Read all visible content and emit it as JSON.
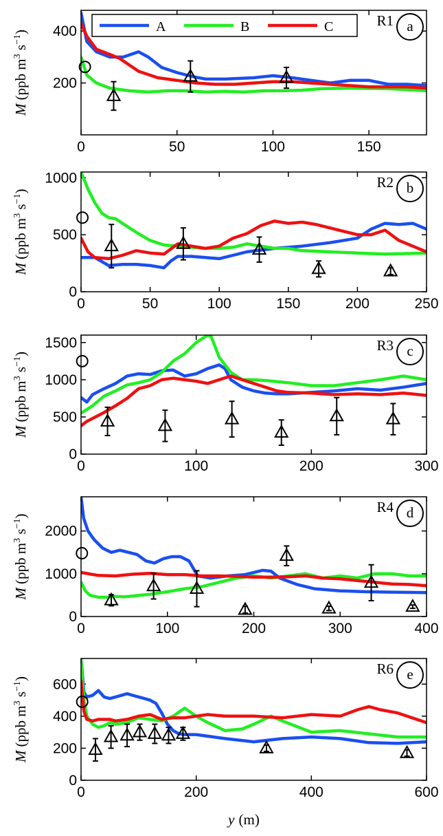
{
  "colors": {
    "A": "#1a4ff0",
    "B": "#22ee22",
    "C": "#ee1111",
    "markers": "#000000"
  },
  "legend": {
    "entries": [
      "A",
      "B",
      "C"
    ]
  },
  "figure": {
    "xlabel": "y (m)",
    "xlabel_var": "y",
    "xlabel_unit": "(m)"
  },
  "chart_data": [
    {
      "type": "line",
      "region": "R1",
      "panel": "a",
      "xlim": [
        0,
        180
      ],
      "ylim": [
        0,
        480
      ],
      "xticks": [
        0,
        50,
        100,
        150
      ],
      "yticks": [
        200,
        400
      ],
      "ylabel": "M (ppb m3 s−1)",
      "series": [
        {
          "name": "A",
          "x": [
            0,
            3,
            8,
            15,
            22,
            30,
            35,
            42,
            50,
            58,
            65,
            75,
            90,
            100,
            110,
            120,
            130,
            140,
            150,
            160,
            170,
            180
          ],
          "y": [
            470,
            360,
            320,
            300,
            300,
            320,
            300,
            260,
            240,
            225,
            215,
            215,
            220,
            228,
            220,
            210,
            200,
            210,
            210,
            195,
            195,
            190
          ]
        },
        {
          "name": "B",
          "x": [
            0,
            3,
            8,
            15,
            25,
            35,
            45,
            55,
            65,
            75,
            85,
            95,
            105,
            115,
            125,
            140,
            160,
            180
          ],
          "y": [
            300,
            230,
            200,
            180,
            170,
            165,
            170,
            170,
            165,
            168,
            165,
            170,
            170,
            172,
            178,
            180,
            178,
            170
          ]
        },
        {
          "name": "C",
          "x": [
            0,
            3,
            8,
            15,
            20,
            30,
            40,
            50,
            60,
            70,
            80,
            90,
            100,
            110,
            120,
            130,
            140,
            150,
            160,
            170,
            180
          ],
          "y": [
            430,
            380,
            330,
            310,
            295,
            245,
            220,
            210,
            200,
            195,
            195,
            200,
            205,
            205,
            200,
            195,
            190,
            185,
            185,
            185,
            180
          ]
        }
      ],
      "circle": {
        "x": 2,
        "y": 262
      },
      "triangles": [
        {
          "x": 17,
          "y": 150,
          "err": 55
        },
        {
          "x": 57,
          "y": 225,
          "err": 60
        },
        {
          "x": 107,
          "y": 220,
          "err": 40
        }
      ]
    },
    {
      "type": "line",
      "region": "R2",
      "panel": "b",
      "xlim": [
        0,
        250
      ],
      "ylim": [
        0,
        1050
      ],
      "xticks": [
        0,
        50,
        100,
        150,
        200,
        250
      ],
      "yticks": [
        0,
        500,
        1000
      ],
      "ylabel": "M (ppb m3 s−1)",
      "series": [
        {
          "name": "A",
          "x": [
            0,
            10,
            20,
            30,
            40,
            50,
            60,
            65,
            70,
            80,
            90,
            100,
            110,
            120,
            140,
            160,
            180,
            200,
            210,
            220,
            230,
            240,
            250
          ],
          "y": [
            300,
            300,
            230,
            240,
            240,
            230,
            210,
            270,
            310,
            310,
            300,
            290,
            320,
            350,
            380,
            400,
            430,
            470,
            550,
            600,
            590,
            600,
            550
          ]
        },
        {
          "name": "B",
          "x": [
            0,
            5,
            10,
            15,
            20,
            25,
            30,
            40,
            50,
            60,
            70,
            80,
            90,
            100,
            110,
            120,
            130,
            140,
            150,
            160,
            180,
            200,
            220,
            250
          ],
          "y": [
            1050,
            900,
            780,
            690,
            650,
            640,
            600,
            520,
            450,
            410,
            400,
            390,
            380,
            380,
            390,
            420,
            400,
            380,
            380,
            360,
            350,
            340,
            330,
            340
          ]
        },
        {
          "name": "C",
          "x": [
            0,
            5,
            10,
            20,
            30,
            40,
            50,
            60,
            70,
            80,
            90,
            100,
            110,
            120,
            130,
            140,
            150,
            160,
            170,
            180,
            190,
            200,
            210,
            220,
            230,
            240,
            250
          ],
          "y": [
            470,
            350,
            300,
            290,
            320,
            360,
            340,
            330,
            420,
            400,
            380,
            400,
            470,
            510,
            580,
            620,
            600,
            610,
            590,
            560,
            530,
            500,
            500,
            540,
            450,
            400,
            350
          ]
        }
      ],
      "circle": {
        "x": 1,
        "y": 650
      },
      "triangles": [
        {
          "x": 22,
          "y": 400,
          "err": 190
        },
        {
          "x": 74,
          "y": 420,
          "err": 140
        },
        {
          "x": 129,
          "y": 370,
          "err": 110
        },
        {
          "x": 172,
          "y": 200,
          "err": 70
        },
        {
          "x": 224,
          "y": 180,
          "err": 30
        }
      ]
    },
    {
      "type": "line",
      "region": "R3",
      "panel": "c",
      "xlim": [
        0,
        300
      ],
      "ylim": [
        0,
        1600
      ],
      "xticks": [
        0,
        100,
        200,
        300
      ],
      "yticks": [
        0,
        500,
        1000,
        1500
      ],
      "ylabel": "M (ppb m3 s−1)",
      "series": [
        {
          "name": "A",
          "x": [
            0,
            5,
            10,
            20,
            30,
            40,
            50,
            60,
            70,
            80,
            90,
            100,
            110,
            120,
            125,
            130,
            140,
            150,
            160,
            170,
            180,
            200,
            220,
            240,
            260,
            280,
            300
          ],
          "y": [
            760,
            700,
            800,
            880,
            950,
            1050,
            1080,
            1070,
            1120,
            1130,
            1050,
            1080,
            1150,
            1200,
            1150,
            1000,
            900,
            850,
            820,
            810,
            810,
            830,
            850,
            880,
            860,
            900,
            950
          ]
        },
        {
          "name": "B",
          "x": [
            0,
            5,
            10,
            20,
            30,
            40,
            50,
            60,
            70,
            80,
            90,
            100,
            110,
            113,
            120,
            130,
            140,
            150,
            160,
            180,
            200,
            220,
            240,
            260,
            280,
            300
          ],
          "y": [
            550,
            600,
            650,
            780,
            850,
            930,
            960,
            1000,
            1100,
            1250,
            1350,
            1500,
            1600,
            1580,
            1300,
            1100,
            1000,
            1000,
            990,
            960,
            920,
            920,
            960,
            1000,
            1050,
            1000
          ]
        },
        {
          "name": "C",
          "x": [
            0,
            5,
            10,
            20,
            30,
            40,
            50,
            60,
            70,
            80,
            90,
            100,
            110,
            120,
            130,
            140,
            150,
            160,
            170,
            180,
            200,
            220,
            240,
            260,
            280,
            300
          ],
          "y": [
            380,
            440,
            480,
            560,
            650,
            750,
            880,
            920,
            1000,
            1020,
            1000,
            980,
            950,
            1000,
            1050,
            1000,
            950,
            900,
            850,
            830,
            820,
            800,
            810,
            800,
            820,
            790
          ]
        }
      ],
      "circle": {
        "x": 1,
        "y": 1250
      },
      "triangles": [
        {
          "x": 23,
          "y": 440,
          "err": 190
        },
        {
          "x": 73,
          "y": 380,
          "err": 210
        },
        {
          "x": 131,
          "y": 470,
          "err": 240
        },
        {
          "x": 174,
          "y": 290,
          "err": 170
        },
        {
          "x": 222,
          "y": 510,
          "err": 250
        },
        {
          "x": 271,
          "y": 470,
          "err": 210
        }
      ]
    },
    {
      "type": "line",
      "region": "R4",
      "panel": "d",
      "xlim": [
        0,
        400
      ],
      "ylim": [
        0,
        2800
      ],
      "xticks": [
        0,
        100,
        200,
        300,
        400
      ],
      "yticks": [
        0,
        1000,
        2000
      ],
      "ylabel": "M (ppb m3 s−1)",
      "series": [
        {
          "name": "A",
          "x": [
            0,
            3,
            8,
            15,
            25,
            35,
            45,
            55,
            65,
            75,
            85,
            95,
            105,
            115,
            125,
            135,
            150,
            170,
            190,
            210,
            220,
            230,
            250,
            270,
            300,
            330,
            360,
            400
          ],
          "y": [
            2800,
            2300,
            2000,
            1800,
            1600,
            1500,
            1550,
            1500,
            1450,
            1300,
            1250,
            1350,
            1400,
            1400,
            1300,
            950,
            900,
            950,
            980,
            1080,
            1060,
            900,
            750,
            650,
            600,
            580,
            570,
            560
          ]
        },
        {
          "name": "B",
          "x": [
            0,
            5,
            10,
            20,
            30,
            40,
            50,
            60,
            70,
            80,
            100,
            120,
            140,
            160,
            180,
            200,
            220,
            240,
            260,
            280,
            300,
            320,
            340,
            360,
            380,
            400
          ],
          "y": [
            800,
            600,
            500,
            450,
            450,
            470,
            460,
            480,
            500,
            520,
            580,
            650,
            700,
            800,
            900,
            950,
            900,
            950,
            1000,
            900,
            950,
            900,
            1000,
            1000,
            950,
            950
          ]
        },
        {
          "name": "C",
          "x": [
            0,
            20,
            40,
            60,
            80,
            100,
            120,
            140,
            160,
            180,
            200,
            220,
            240,
            260,
            280,
            300,
            320,
            340,
            360,
            380,
            400
          ],
          "y": [
            1030,
            960,
            950,
            990,
            1010,
            980,
            980,
            950,
            950,
            940,
            920,
            920,
            930,
            950,
            900,
            880,
            840,
            800,
            760,
            750,
            720
          ]
        }
      ],
      "circle": {
        "x": 1,
        "y": 1480
      },
      "triangles": [
        {
          "x": 35,
          "y": 380,
          "err": 130
        },
        {
          "x": 84,
          "y": 710,
          "err": 300
        },
        {
          "x": 134,
          "y": 650,
          "err": 420
        },
        {
          "x": 190,
          "y": 160,
          "err": 80
        },
        {
          "x": 238,
          "y": 1420,
          "err": 230
        },
        {
          "x": 287,
          "y": 190,
          "err": 50
        },
        {
          "x": 336,
          "y": 790,
          "err": 420
        },
        {
          "x": 384,
          "y": 230,
          "err": 40
        }
      ]
    },
    {
      "type": "line",
      "region": "R6",
      "panel": "e",
      "xlim": [
        0,
        600
      ],
      "ylim": [
        0,
        760
      ],
      "xticks": [
        0,
        200,
        400,
        600
      ],
      "yticks": [
        0,
        200,
        400,
        600
      ],
      "ylabel": "M (ppb m3 s−1)",
      "series": [
        {
          "name": "A",
          "x": [
            0,
            5,
            10,
            20,
            30,
            40,
            50,
            60,
            70,
            80,
            90,
            100,
            110,
            120,
            130,
            140,
            150,
            160,
            170,
            180,
            200,
            250,
            300,
            350,
            400,
            450,
            500,
            550,
            600
          ],
          "y": [
            760,
            550,
            520,
            530,
            560,
            520,
            510,
            520,
            530,
            540,
            530,
            520,
            510,
            500,
            480,
            420,
            350,
            310,
            290,
            285,
            285,
            260,
            240,
            260,
            270,
            260,
            235,
            230,
            240
          ]
        },
        {
          "name": "B",
          "x": [
            0,
            5,
            10,
            20,
            30,
            40,
            50,
            60,
            80,
            100,
            120,
            140,
            160,
            180,
            200,
            220,
            250,
            280,
            300,
            330,
            350,
            400,
            450,
            500,
            550,
            600
          ],
          "y": [
            750,
            500,
            400,
            350,
            330,
            340,
            360,
            350,
            360,
            390,
            380,
            370,
            400,
            450,
            400,
            360,
            310,
            320,
            350,
            400,
            370,
            300,
            310,
            290,
            270,
            270
          ]
        },
        {
          "name": "C",
          "x": [
            0,
            5,
            10,
            20,
            30,
            40,
            50,
            60,
            80,
            100,
            120,
            140,
            160,
            180,
            200,
            220,
            250,
            300,
            350,
            400,
            450,
            480,
            500,
            520,
            550,
            600
          ],
          "y": [
            620,
            430,
            380,
            370,
            380,
            380,
            380,
            370,
            380,
            400,
            410,
            380,
            390,
            390,
            400,
            410,
            400,
            400,
            390,
            410,
            400,
            440,
            460,
            440,
            420,
            360
          ]
        }
      ],
      "circle": {
        "x": 2,
        "y": 490
      },
      "triangles": [
        {
          "x": 25,
          "y": 190,
          "err": 70
        },
        {
          "x": 52,
          "y": 270,
          "err": 70
        },
        {
          "x": 80,
          "y": 280,
          "err": 70
        },
        {
          "x": 102,
          "y": 300,
          "err": 50
        },
        {
          "x": 128,
          "y": 290,
          "err": 60
        },
        {
          "x": 152,
          "y": 280,
          "err": 50
        },
        {
          "x": 177,
          "y": 290,
          "err": 40
        },
        {
          "x": 322,
          "y": 200,
          "err": 20
        },
        {
          "x": 566,
          "y": 170,
          "err": 20
        }
      ]
    }
  ]
}
